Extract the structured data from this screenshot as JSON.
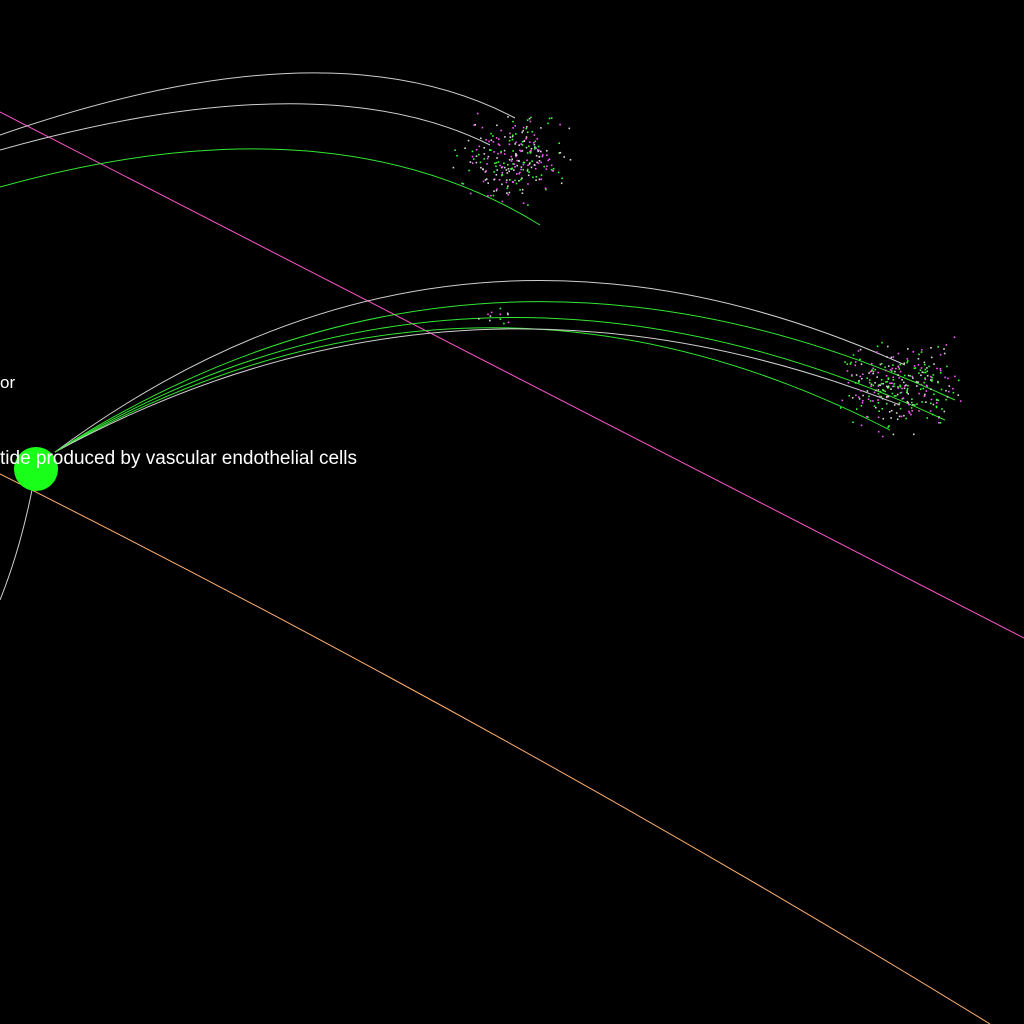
{
  "labels": {
    "partial": "or",
    "main": "tide produced by vascular endothelial cells"
  },
  "colors": {
    "background": "#000000",
    "node": "#1aff1a",
    "edge_green": "#33e633",
    "edge_grey": "#cfcfcf",
    "edge_pink": "#ff55cc",
    "edge_peach": "#ffb070",
    "label": "#ffffff",
    "scatter": [
      "#33ff33",
      "#ff55ff",
      "#d9d9d9"
    ]
  },
  "icons": {
    "node": "filled-circle"
  }
}
